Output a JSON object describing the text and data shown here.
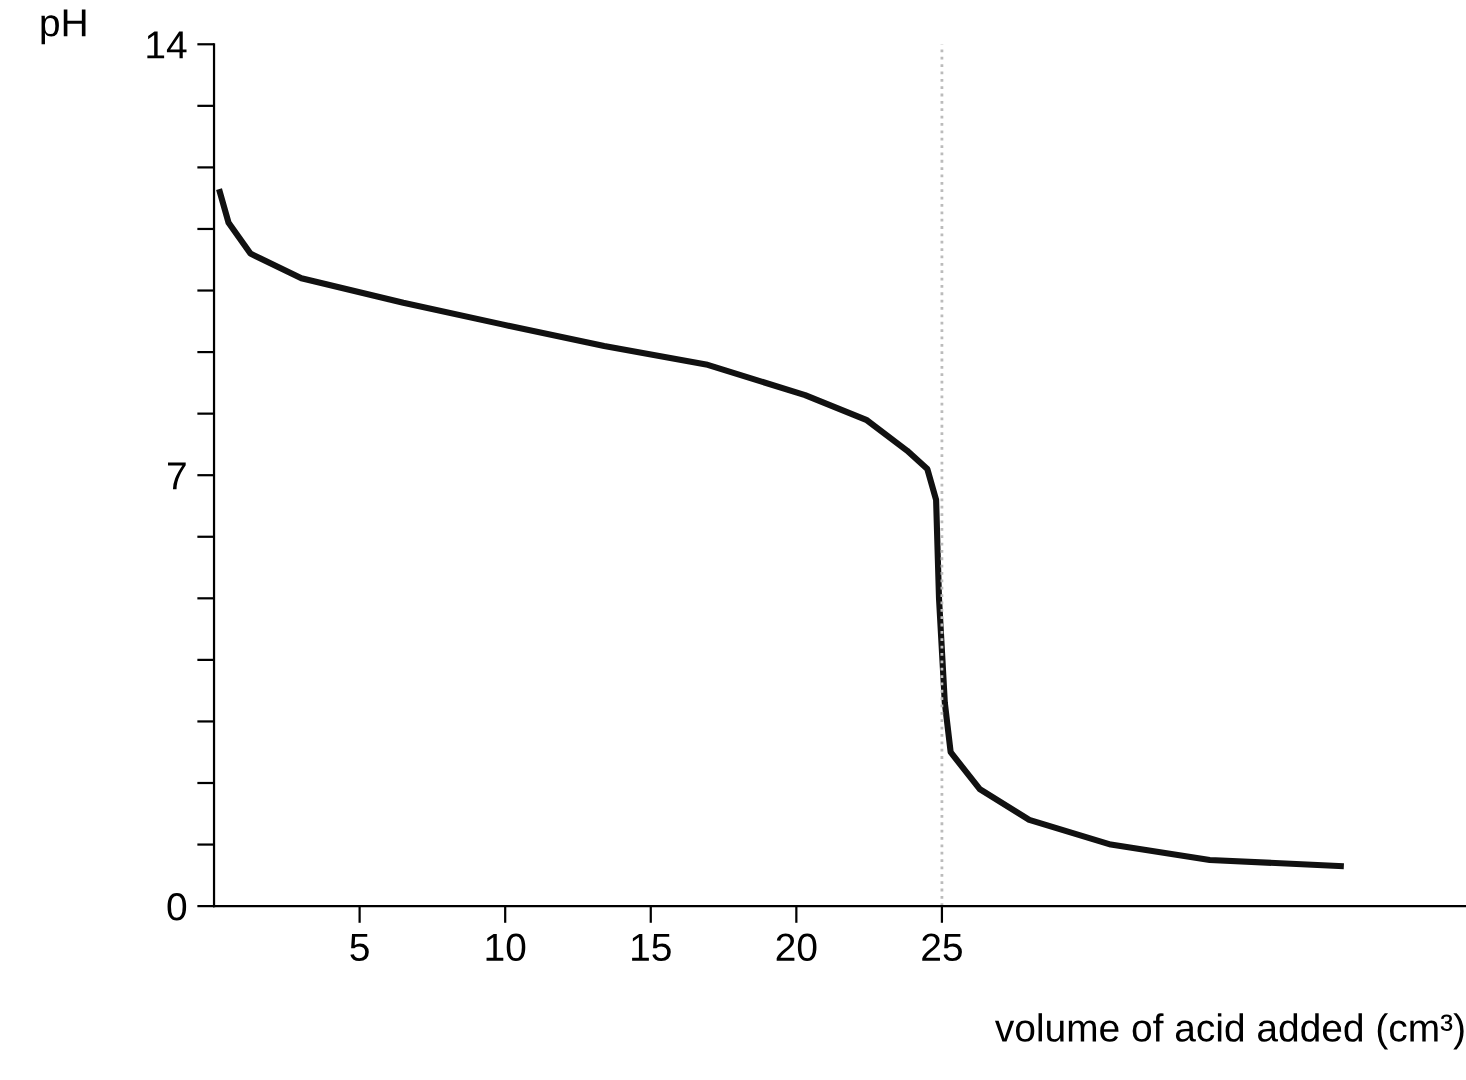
{
  "chart_data": {
    "type": "line",
    "xlabel": "volume of acid added (cm³)",
    "ylabel": "pH",
    "x": [
      0.2,
      0.5,
      1.25,
      3,
      6.5,
      9.9,
      13.4,
      16.9,
      20.3,
      22.4,
      23.8,
      24.5,
      24.8,
      24.9,
      25.1,
      25.3,
      26.3,
      28,
      30.8,
      34.2,
      38.7
    ],
    "series": [
      {
        "color": "#111111",
        "values": [
          11.6,
          11.1,
          10.6,
          10.2,
          9.8,
          9.45,
          9.1,
          8.8,
          8.3,
          7.9,
          7.4,
          7.1,
          6.6,
          5.0,
          3.3,
          2.5,
          1.9,
          1.4,
          1.0,
          0.75,
          0.65
        ]
      }
    ],
    "xlim": [
      0,
      43
    ],
    "ylim": [
      0,
      14
    ],
    "xticks": [
      5,
      10,
      15,
      20,
      25
    ],
    "yticks": [
      0,
      {
        "value": 1,
        "label": null
      },
      {
        "value": 2,
        "label": null
      },
      {
        "value": 3,
        "label": null
      },
      {
        "value": 4,
        "label": null
      },
      {
        "value": 5,
        "label": null
      },
      {
        "value": 6,
        "label": null
      },
      7,
      {
        "value": 8,
        "label": null
      },
      {
        "value": 9,
        "label": null
      },
      {
        "value": 10,
        "label": null
      },
      {
        "value": 11,
        "label": null
      },
      {
        "value": 12,
        "label": null
      },
      {
        "value": 13,
        "label": null
      },
      14
    ],
    "ref_lines": [
      {
        "axis": "x",
        "value": 25,
        "color": "#bbbbbb",
        "line_style": "dotted"
      }
    ],
    "grid": false,
    "legend": false,
    "marker": "none",
    "line_style": "solid"
  }
}
